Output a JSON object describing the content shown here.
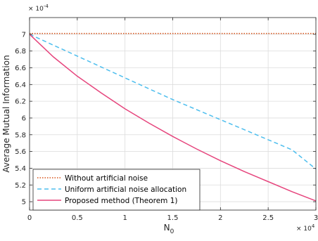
{
  "chart_data": {
    "type": "line",
    "xlabel": "N",
    "xlabel_subscript": "0",
    "ylabel": "Average Mutual Information",
    "x_multiplier": "× 10",
    "x_multiplier_exp": "4",
    "y_multiplier": "× 10",
    "y_multiplier_exp": "-4",
    "xlim": [
      0,
      3
    ],
    "ylim": [
      4.9,
      7.2
    ],
    "x_ticks": [
      0,
      0.5,
      1,
      1.5,
      2,
      2.5,
      3
    ],
    "x_tick_labels": [
      "0",
      "0.5",
      "1",
      "1.5",
      "2",
      "2.5",
      "3"
    ],
    "y_ticks": [
      5,
      5.2,
      5.4,
      5.6,
      5.8,
      6,
      6.2,
      6.4,
      6.6,
      6.8,
      7
    ],
    "y_tick_labels": [
      "5",
      "5.2",
      "5.4",
      "5.6",
      "5.8",
      "6",
      "6.2",
      "6.4",
      "6.6",
      "6.8",
      "7"
    ],
    "grid": true,
    "legend_position": "bottom-left",
    "x": [
      0,
      0.25,
      0.5,
      0.75,
      1,
      1.25,
      1.5,
      1.75,
      2,
      2.25,
      2.5,
      2.75,
      3
    ],
    "series": [
      {
        "name": "Without artificial noise",
        "color": "#d95319",
        "style": "dotted",
        "values": [
          7.01,
          7.01,
          7.01,
          7.01,
          7.01,
          7.01,
          7.01,
          7.01,
          7.01,
          7.01,
          7.01,
          7.01,
          7.01
        ]
      },
      {
        "name": "Uniform artificial noise allocation",
        "color": "#4dbeee",
        "style": "dashed",
        "values": [
          7.0,
          6.87,
          6.74,
          6.61,
          6.48,
          6.35,
          6.22,
          6.1,
          5.98,
          5.86,
          5.74,
          5.62,
          5.39
        ]
      },
      {
        "name": "Proposed method (Theorem 1)",
        "color": "#e6457d",
        "style": "solid",
        "values": [
          7.0,
          6.73,
          6.5,
          6.3,
          6.11,
          5.94,
          5.78,
          5.63,
          5.49,
          5.36,
          5.24,
          5.12,
          5.01
        ]
      }
    ]
  }
}
